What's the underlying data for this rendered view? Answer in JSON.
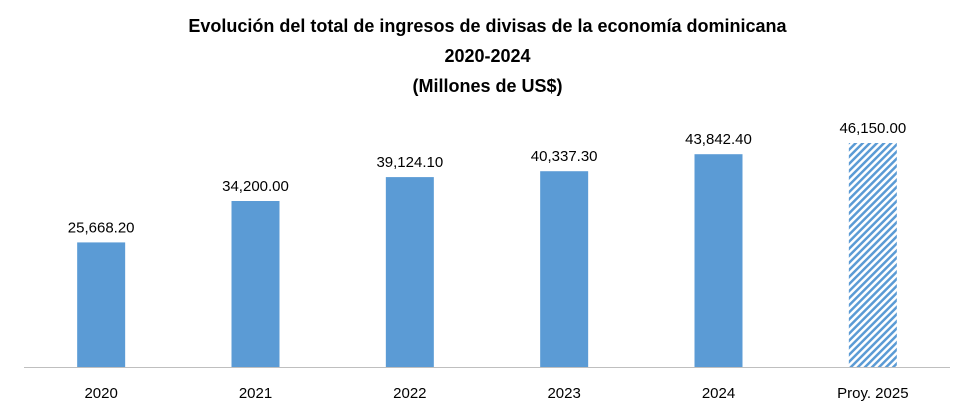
{
  "chart_data": {
    "type": "bar",
    "title": "Evolución del total de ingresos de divisas de la economía dominicana",
    "subtitle": "2020-2024",
    "unit_label": "(Millones de US$)",
    "categories": [
      "2020",
      "2021",
      "2022",
      "2023",
      "2024",
      "Proy. 2025"
    ],
    "values": [
      25668.2,
      34200.0,
      39124.1,
      40337.3,
      43842.4,
      46150.0
    ],
    "data_labels": [
      "25,668.20",
      "34,200.00",
      "39,124.10",
      "40,337.30",
      "43,842.40",
      "46,150.00"
    ],
    "projected": [
      false,
      false,
      false,
      false,
      false,
      true
    ],
    "xlabel": "",
    "ylabel": "",
    "ylim": [
      0,
      50000
    ],
    "grid": false,
    "legend": "none",
    "colors": {
      "bar": "#5b9bd5",
      "projection_hatch": "#5b9bd5",
      "axis": "#bfbfbf"
    }
  }
}
